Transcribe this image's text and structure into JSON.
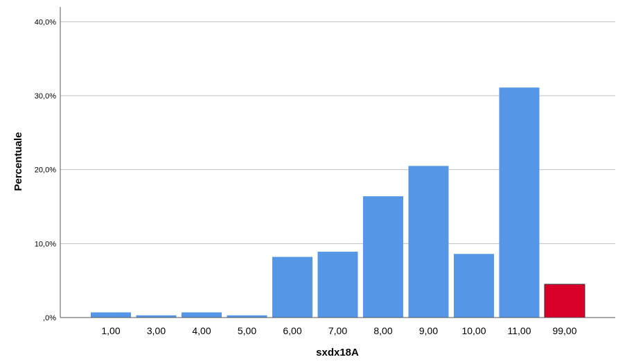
{
  "chart_data": {
    "type": "bar",
    "title": "",
    "xlabel": "sxdx18A",
    "ylabel": "Percentuale",
    "categories": [
      "1,00",
      "3,00",
      "4,00",
      "5,00",
      "6,00",
      "7,00",
      "8,00",
      "9,00",
      "10,00",
      "11,00",
      "99,00"
    ],
    "values": [
      0.7,
      0.3,
      0.7,
      0.3,
      8.2,
      8.9,
      16.4,
      20.5,
      8.6,
      31.1,
      4.5
    ],
    "ylim": [
      0,
      42
    ],
    "yticks": [
      0,
      10,
      20,
      30,
      40
    ],
    "ytick_labels": [
      ",0%",
      "10,0%",
      "20,0%",
      "30,0%",
      "40,0%"
    ],
    "grid": true,
    "colors": {
      "bar": "#5596e6",
      "highlight_bar": "#d9002a",
      "highlight_index": 10,
      "grid": "#c0c0c0",
      "axis": "#555555"
    }
  }
}
